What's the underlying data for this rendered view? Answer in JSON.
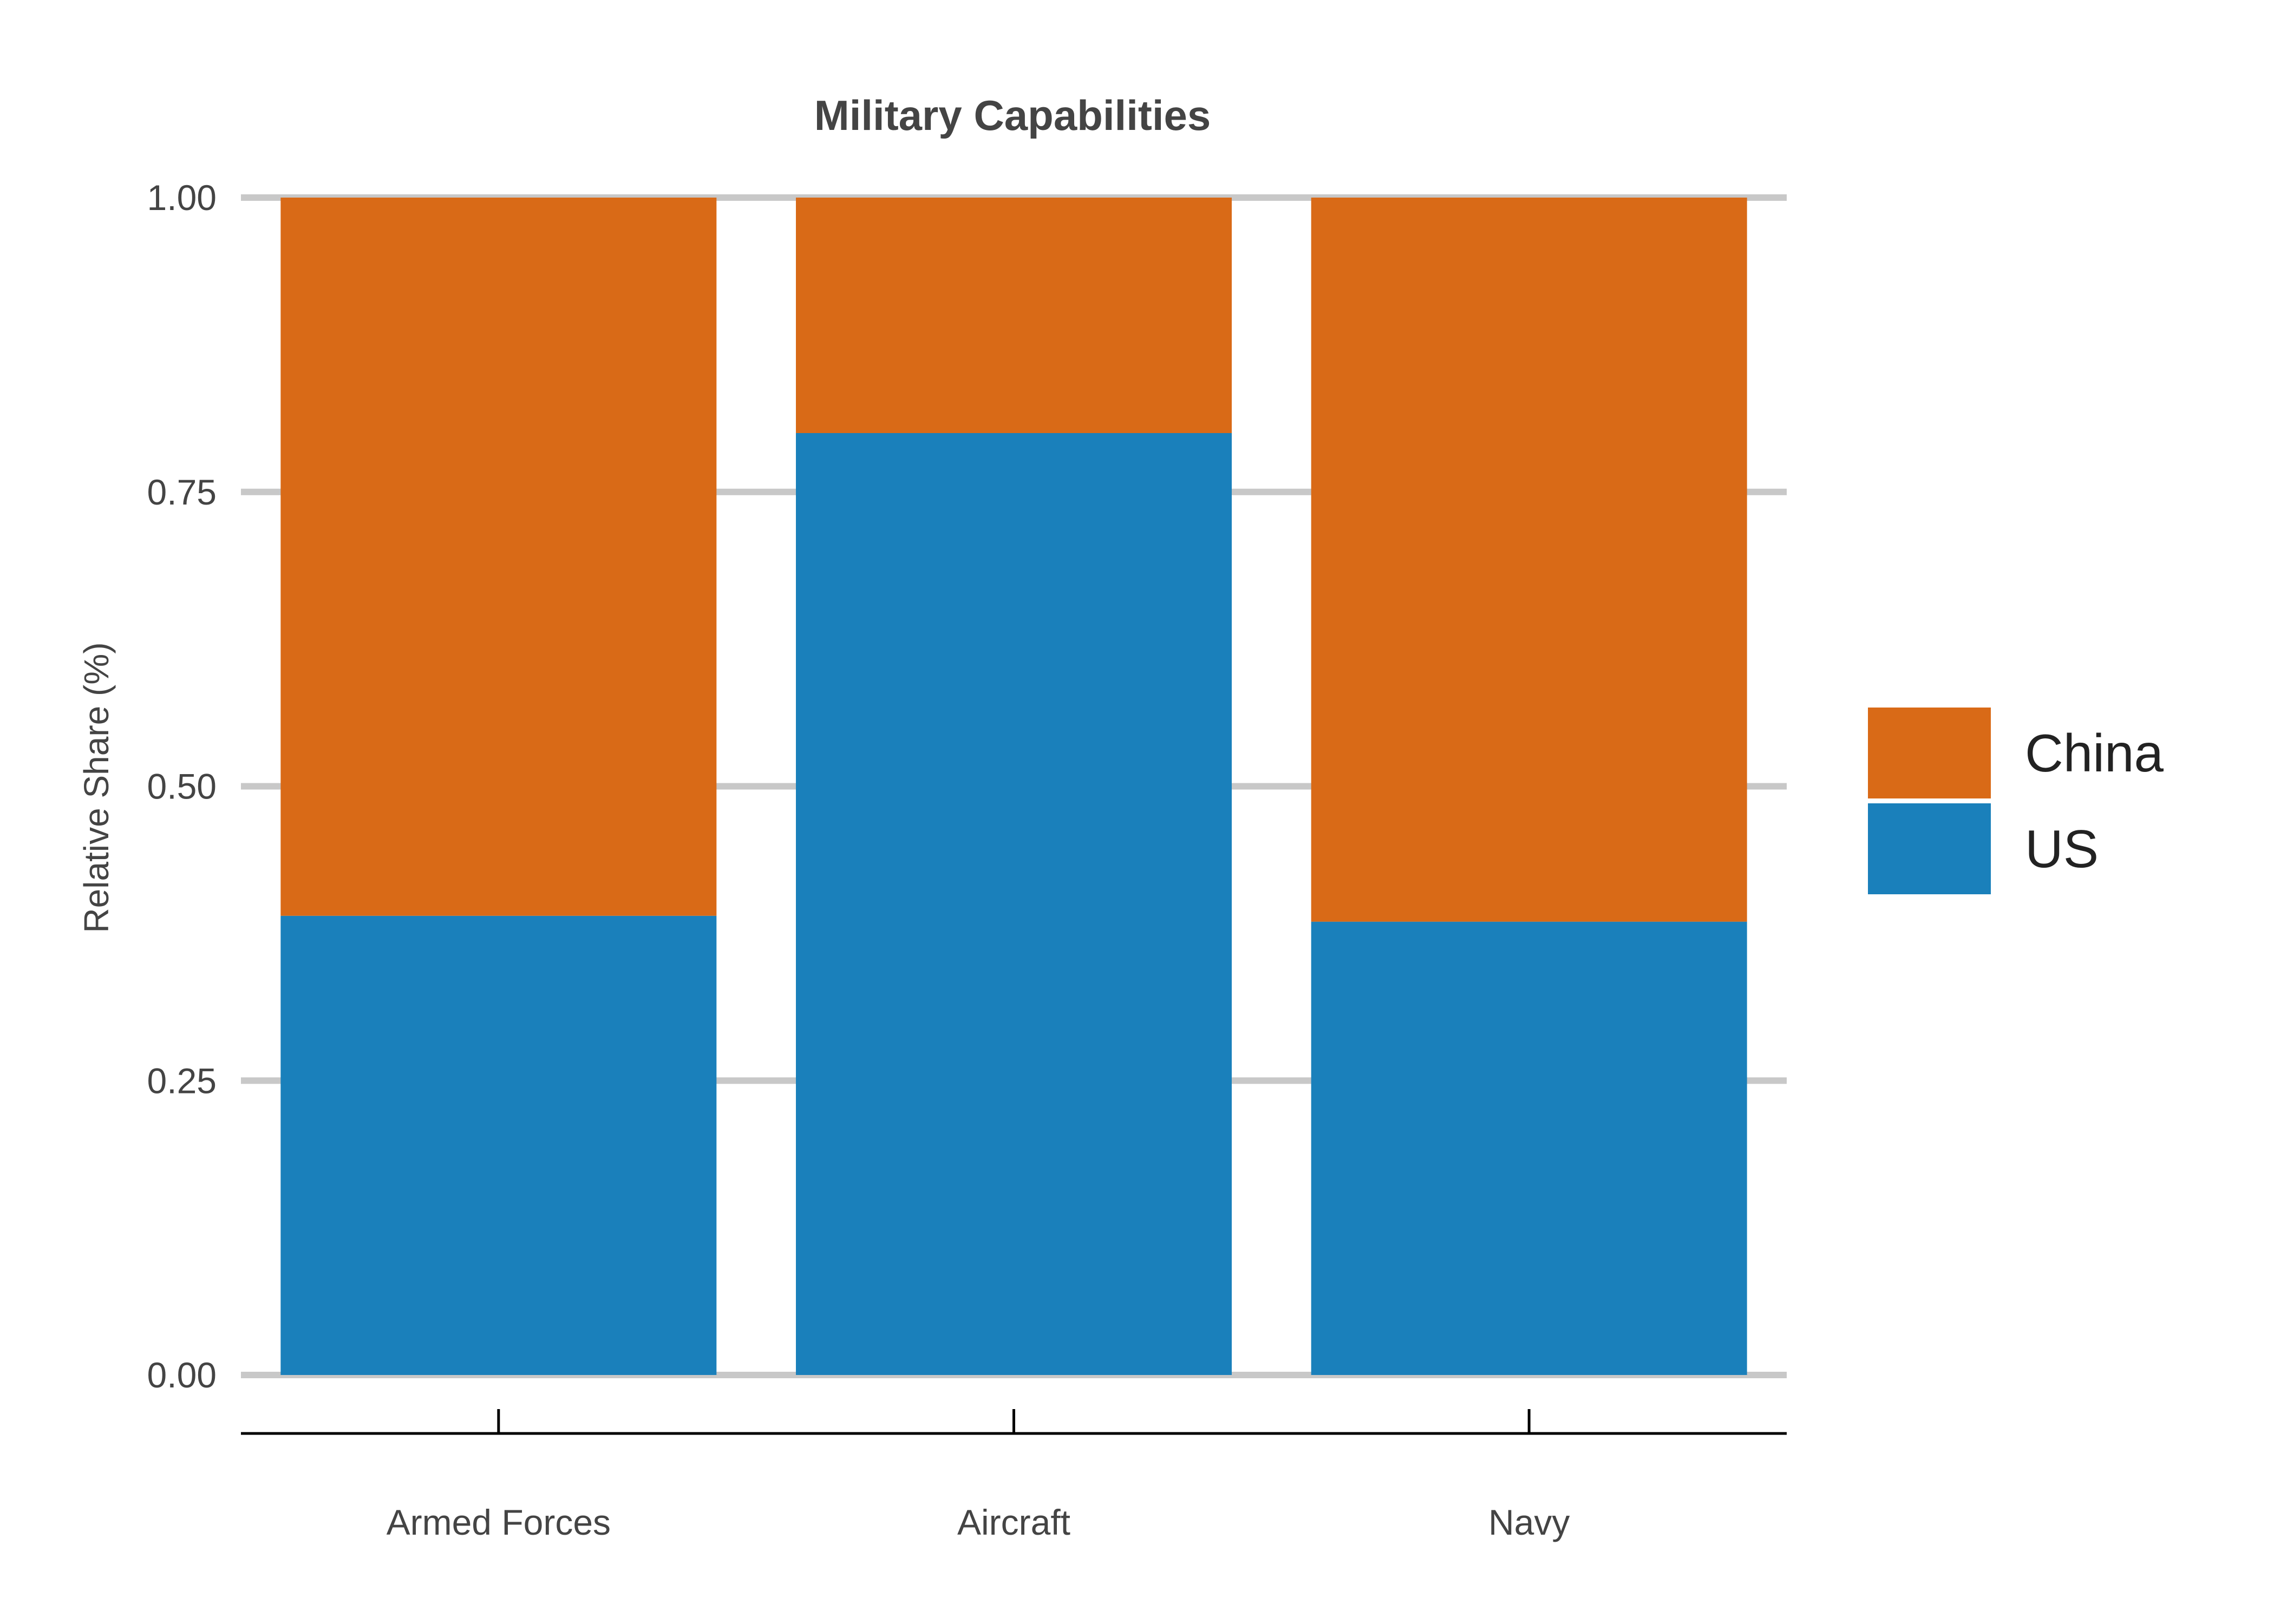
{
  "chart_data": {
    "type": "bar",
    "stacked": true,
    "title": "Military Capabilities",
    "xlabel": "",
    "ylabel": "Relative Share (%)",
    "ylim": [
      0,
      1
    ],
    "yticks": [
      "0.00",
      "0.25",
      "0.50",
      "0.75",
      "1.00"
    ],
    "ytick_values": [
      0,
      0.25,
      0.5,
      0.75,
      1.0
    ],
    "categories": [
      "Armed Forces",
      "Aircraft",
      "Navy"
    ],
    "series": [
      {
        "name": "US",
        "color": "#1a80bb",
        "values": [
          0.39,
          0.8,
          0.385
        ]
      },
      {
        "name": "China",
        "color": "#d96a17",
        "values": [
          0.61,
          0.2,
          0.615
        ]
      }
    ],
    "legend": {
      "position": "right",
      "order": [
        "China",
        "US"
      ]
    },
    "grid": true
  }
}
